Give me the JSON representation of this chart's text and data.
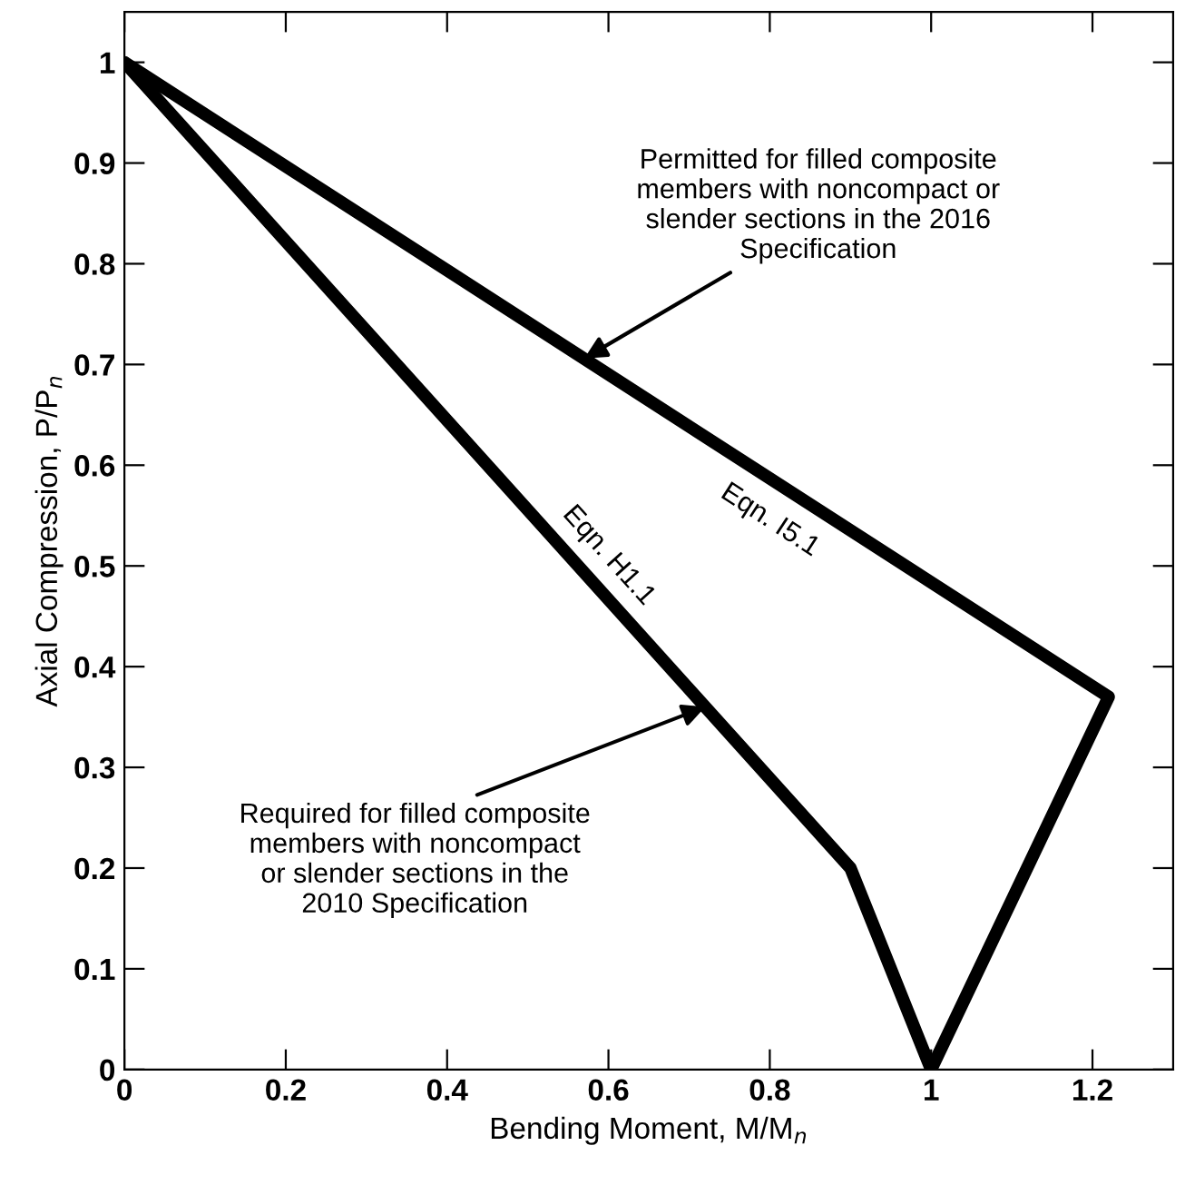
{
  "chart_data": {
    "type": "line",
    "xlabel": "Bending Moment, M/M$_{n}$",
    "ylabel": "Axial Compression, P/P$_{n}$",
    "xlim": [
      0,
      1.3
    ],
    "ylim": [
      0,
      1.05
    ],
    "xticks": [
      0,
      0.2,
      0.4,
      0.6,
      0.8,
      1,
      1.2
    ],
    "yticks": [
      0,
      0.1,
      0.2,
      0.3,
      0.4,
      0.5,
      0.6,
      0.7,
      0.8,
      0.9,
      1
    ],
    "grid": false,
    "marker": "none",
    "line_style": "solid",
    "series": [
      {
        "color": "#000000",
        "x": [
          0,
          0.9,
          1
        ],
        "values": [
          1,
          0.2,
          0
        ]
      },
      {
        "color": "#000000",
        "x": [
          0,
          1.22,
          1
        ],
        "values": [
          1,
          0.37,
          0
        ]
      }
    ],
    "annotations": [
      {
        "text": "Permitted for filled composite\nmembers with noncompact or\nslender sections in the 2016\nSpecification",
        "x": 0.57,
        "y": 0.706
      },
      {
        "text": "Required for filled composite\nmembers with noncompact\nor slender sections in the\n2010 Specification",
        "x": 0.72,
        "y": 0.36
      },
      "Eqn. H1.1",
      "Eqn. I5.1"
    ]
  }
}
